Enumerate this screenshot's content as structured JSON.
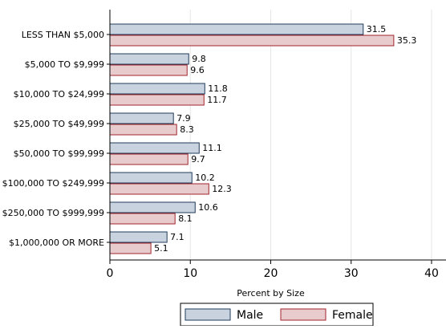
{
  "chart_data": {
    "type": "bar",
    "orientation": "horizontal",
    "categories": [
      "LESS THAN $5,000",
      "$5,000 TO $9,999",
      "$10,000 TO $24,999",
      "$25,000 TO $49,999",
      "$50,000 TO $99,999",
      "$100,000 TO $249,999",
      "$250,000 TO $999,999",
      "$1,000,000 OR MORE"
    ],
    "series": [
      {
        "name": "Male",
        "values": [
          31.5,
          9.8,
          11.8,
          7.9,
          11.1,
          10.2,
          10.6,
          7.1
        ],
        "value_labels": [
          "31.5",
          "9.8",
          "11.8",
          "7.9",
          "11.1",
          "10.2",
          "10.6",
          "7.1"
        ],
        "fill": "#c9d3df",
        "stroke": "#1f3b59"
      },
      {
        "name": "Female",
        "values": [
          35.3,
          9.6,
          11.7,
          8.3,
          9.7,
          12.3,
          8.1,
          5.1
        ],
        "value_labels": [
          "35.3",
          "9.6",
          "11.7",
          "8.3",
          "9.7",
          "12.3",
          "8.1",
          "5.1"
        ],
        "fill": "#e7cbcd",
        "stroke": "#a1262c"
      }
    ],
    "xlabel": "Percent by Size",
    "ylabel": "",
    "title": "",
    "xlim": [
      0,
      40
    ],
    "xticks": [
      0,
      10,
      20,
      30,
      40
    ],
    "xtick_labels": [
      "0",
      "10",
      "20",
      "30",
      "40"
    ],
    "grid": true,
    "legend_position": "bottom"
  }
}
